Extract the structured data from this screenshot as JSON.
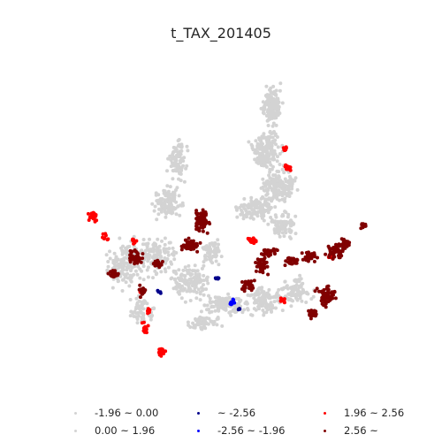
{
  "title": "t_TAX_201405",
  "categories": [
    {
      "label": "-1.96 ~ 0.00",
      "color": "#d3d3d3"
    },
    {
      "label": "0.00 ~ 1.96",
      "color": "#d3d3d3"
    },
    {
      "label": "~ -2.56",
      "color": "#00008b"
    },
    {
      "label": "-2.56 ~ -1.96",
      "color": "#0000ff"
    },
    {
      "label": "1.96 ~ 2.56",
      "color": "#ff0000"
    },
    {
      "label": "2.56 ~",
      "color": "#800000"
    }
  ]
}
